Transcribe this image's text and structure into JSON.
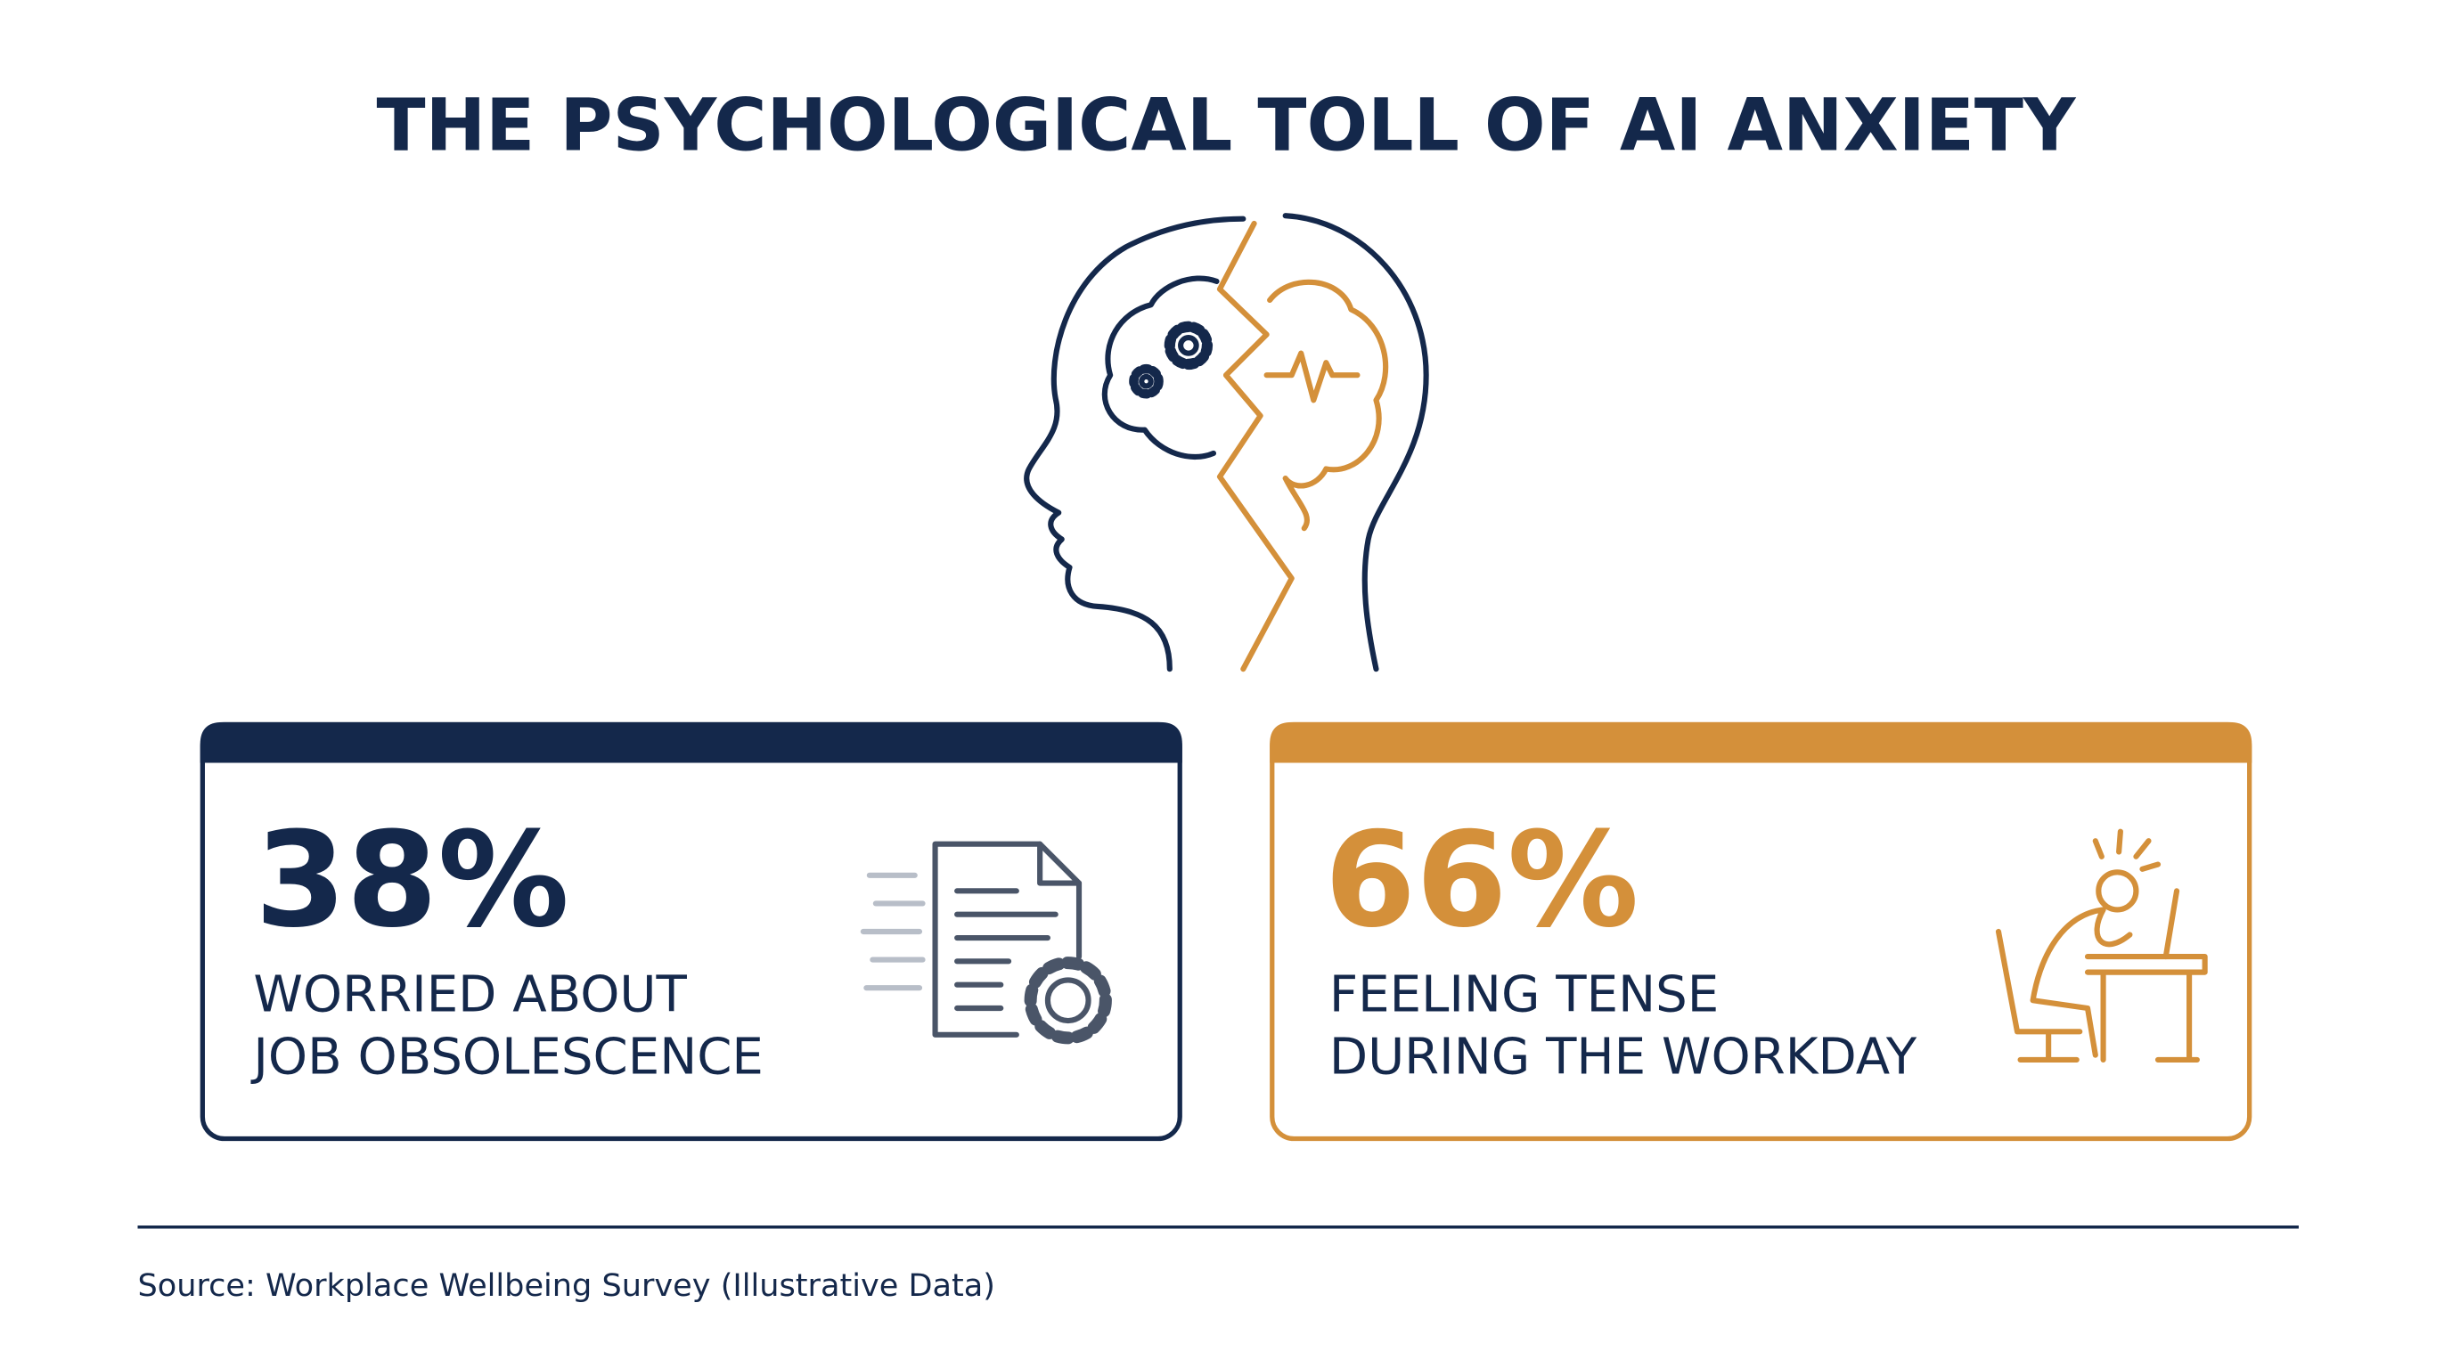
{
  "header": {
    "title": "THE PSYCHOLOGICAL TOLL OF AI ANXIETY"
  },
  "cards": [
    {
      "value": "38%",
      "label_lines": [
        "WORRIED ABOUT",
        "JOB OBSOLESCENCE"
      ]
    },
    {
      "value": "66%",
      "label_lines": [
        "FEELING TENSE",
        "DURING THE WORKDAY"
      ]
    }
  ],
  "footer": {
    "source": "Source: Workplace Wellbeing Survey (Illustrative Data)"
  }
}
